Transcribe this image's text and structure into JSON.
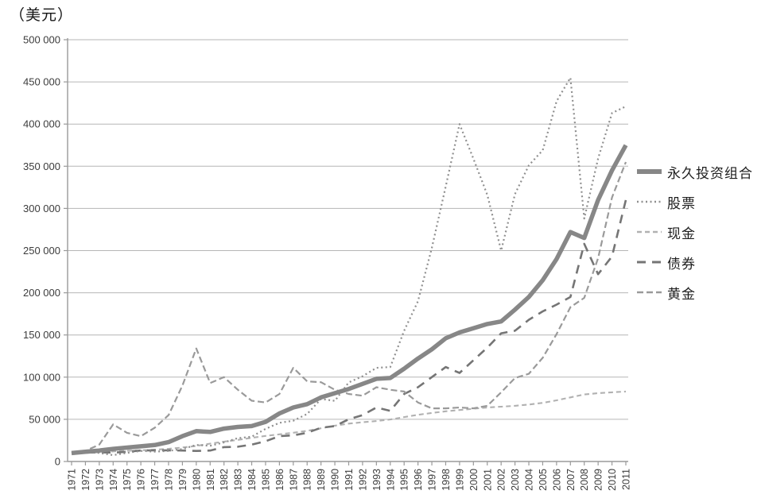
{
  "colors": {
    "background": "#ffffff",
    "grid": "#b6b6b6",
    "axis": "#9a9a9a",
    "tick_label": "#3c3c3c",
    "legend_text": "#1d1d1d",
    "title_text": "#151515"
  },
  "chart_data": {
    "type": "line",
    "title": "",
    "ylabel": "（美元）",
    "xlabel": "",
    "ylim": [
      0,
      500000
    ],
    "ytick_step": 50000,
    "y_tick_labels": [
      "0",
      "50 000",
      "100 000",
      "150 000",
      "200 000",
      "250 000",
      "300 000",
      "350 000",
      "400 000",
      "450 000",
      "500 000"
    ],
    "grid": "horizontal-only",
    "legend_position": "right",
    "x": [
      1971,
      1972,
      1973,
      1974,
      1975,
      1976,
      1977,
      1978,
      1979,
      1980,
      1981,
      1982,
      1983,
      1984,
      1985,
      1986,
      1987,
      1988,
      1989,
      1990,
      1991,
      1992,
      1993,
      1994,
      1995,
      1996,
      1997,
      1998,
      1999,
      2000,
      2001,
      2002,
      2003,
      2004,
      2005,
      2006,
      2007,
      2008,
      2009,
      2010,
      2011
    ],
    "series": [
      {
        "key": "portfolio",
        "name": "永久投资组合",
        "color": "#878787",
        "width": 5.5,
        "dash": "",
        "values": [
          10000,
          11500,
          13000,
          15000,
          16500,
          18000,
          19500,
          23000,
          30000,
          36000,
          35000,
          39000,
          41000,
          42000,
          47000,
          57000,
          64000,
          68000,
          76000,
          81000,
          86000,
          92000,
          98000,
          99000,
          110000,
          122000,
          133000,
          146000,
          153000,
          158000,
          163000,
          166000,
          180000,
          195000,
          215000,
          240000,
          272000,
          265000,
          310000,
          345000,
          375000
        ]
      },
      {
        "key": "stocks",
        "name": "股票",
        "color": "#8f8f8f",
        "width": 2.2,
        "dash": "2 3.5",
        "values": [
          10000,
          11900,
          10100,
          7500,
          10200,
          12600,
          11700,
          12500,
          14800,
          19600,
          18600,
          22600,
          27700,
          29400,
          38700,
          45900,
          48300,
          56300,
          74100,
          71800,
          93700,
          101000,
          111000,
          112000,
          155000,
          190000,
          253000,
          326000,
          400000,
          359000,
          316000,
          250000,
          317000,
          351000,
          369000,
          427000,
          455000,
          288000,
          359000,
          413000,
          421000
        ]
      },
      {
        "key": "cash",
        "name": "现金",
        "color": "#b1b1b1",
        "width": 2.1,
        "dash": "6 4",
        "values": [
          10000,
          10400,
          11100,
          12000,
          12700,
          13300,
          14000,
          15000,
          16600,
          18500,
          21200,
          23500,
          25600,
          28100,
          30300,
          32200,
          34100,
          36300,
          39400,
          42500,
          44900,
          46500,
          47900,
          49800,
          52600,
          55400,
          57500,
          59500,
          61000,
          62500,
          64000,
          65000,
          66000,
          67500,
          69500,
          72500,
          76000,
          79500,
          81000,
          82000,
          83000
        ]
      },
      {
        "key": "bonds",
        "name": "债券",
        "color": "#757575",
        "width": 2.6,
        "dash": "11 8",
        "values": [
          10000,
          10500,
          10800,
          10500,
          11500,
          13000,
          13300,
          13200,
          13000,
          12500,
          13000,
          17000,
          17500,
          20000,
          24000,
          30000,
          31000,
          34000,
          40000,
          42000,
          50000,
          55000,
          64000,
          60000,
          80000,
          88000,
          100000,
          112000,
          105000,
          120000,
          135000,
          152000,
          155000,
          168000,
          178000,
          186000,
          195000,
          258000,
          222000,
          243000,
          310000
        ]
      },
      {
        "key": "gold",
        "name": "黄金",
        "color": "#9a9a9a",
        "width": 2.2,
        "dash": "8 4",
        "values": [
          10000,
          12500,
          20000,
          44000,
          34000,
          30000,
          40000,
          55000,
          90000,
          134000,
          93000,
          100000,
          85000,
          72000,
          70000,
          80000,
          111000,
          95000,
          94000,
          85000,
          80000,
          78000,
          88000,
          85000,
          83000,
          70000,
          63000,
          63000,
          64000,
          63000,
          66000,
          82000,
          99000,
          104000,
          123000,
          151000,
          183000,
          194000,
          241000,
          313000,
          355000
        ]
      }
    ]
  }
}
